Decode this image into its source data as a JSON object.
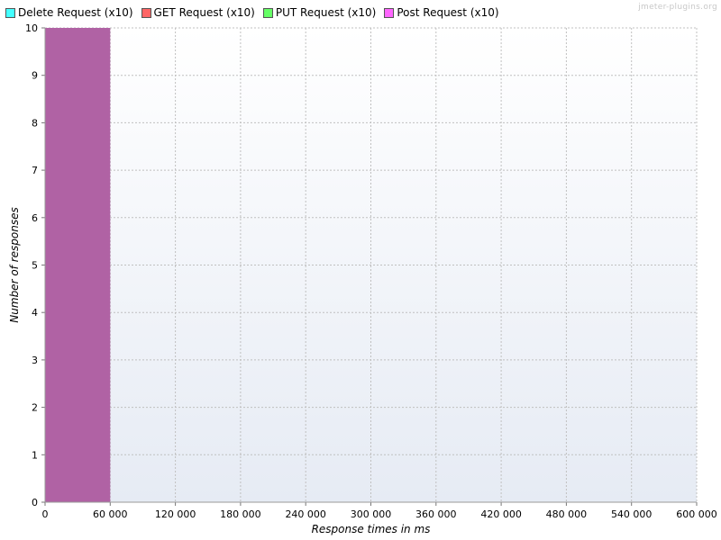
{
  "watermark": "jmeter-plugins.org",
  "colors": {
    "bar": "#B062A4",
    "grid": "#c0c0c0",
    "plot_top": "#ffffff",
    "plot_bottom": "#e6ebf4"
  },
  "legend": [
    {
      "label": "Delete Request (x10)",
      "color": "#44ffff"
    },
    {
      "label": "GET Request (x10)",
      "color": "#ff6666"
    },
    {
      "label": "PUT Request (x10)",
      "color": "#66ff66"
    },
    {
      "label": "Post Request (x10)",
      "color": "#ff66ff"
    }
  ],
  "chart_data": {
    "type": "bar",
    "title": "",
    "xlabel": "Response times in ms",
    "ylabel": "Number of responses",
    "xlim": [
      0,
      600000
    ],
    "ylim": [
      0,
      10
    ],
    "grid": true,
    "legend_position": "top-left",
    "x_ticks": [
      "0",
      "60 000",
      "120 000",
      "180 000",
      "240 000",
      "300 000",
      "360 000",
      "420 000",
      "480 000",
      "540 000",
      "600 000"
    ],
    "y_ticks": [
      "0",
      "1",
      "2",
      "3",
      "4",
      "5",
      "6",
      "7",
      "8",
      "9",
      "10"
    ],
    "bins": [
      {
        "x_start": 0,
        "x_end": 60000,
        "value": 10
      }
    ]
  }
}
